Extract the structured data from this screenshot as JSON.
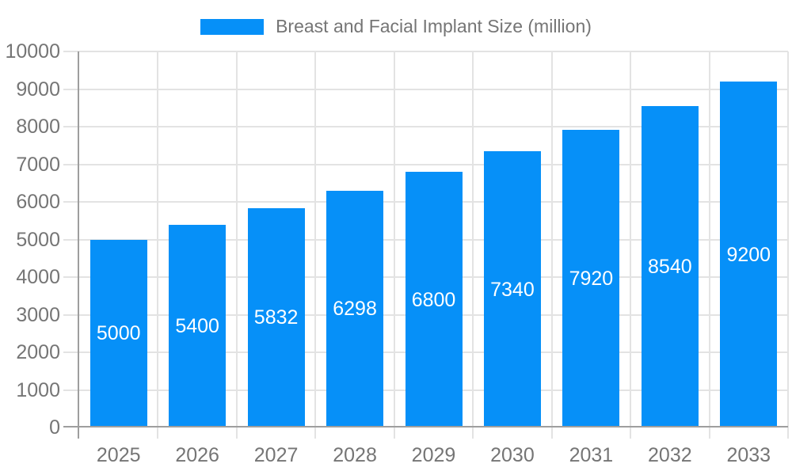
{
  "chart_data": {
    "type": "bar",
    "title": "Breast and Facial Implant Size (million)",
    "categories": [
      "2025",
      "2026",
      "2027",
      "2028",
      "2029",
      "2030",
      "2031",
      "2032",
      "2033"
    ],
    "series": [
      {
        "name": "Breast and Facial Implant Size (million)",
        "values": [
          5000,
          5400,
          5832,
          6298,
          6800,
          7340,
          7920,
          8540,
          9200
        ],
        "color": "#0690f8"
      }
    ],
    "value_labels_shown": true,
    "xlabel": "",
    "ylabel": "",
    "ylim": [
      0,
      10000
    ],
    "yticks": [
      0,
      1000,
      2000,
      3000,
      4000,
      5000,
      6000,
      7000,
      8000,
      9000,
      10000
    ],
    "grid": true,
    "legend_position": "top-center",
    "colors": {
      "bar": "#0690f8",
      "value_label": "#ffffff",
      "axis_text": "#757575",
      "axis_line": "#9e9e9e",
      "gridline": "#e3e3e3",
      "background": "#ffffff"
    }
  }
}
